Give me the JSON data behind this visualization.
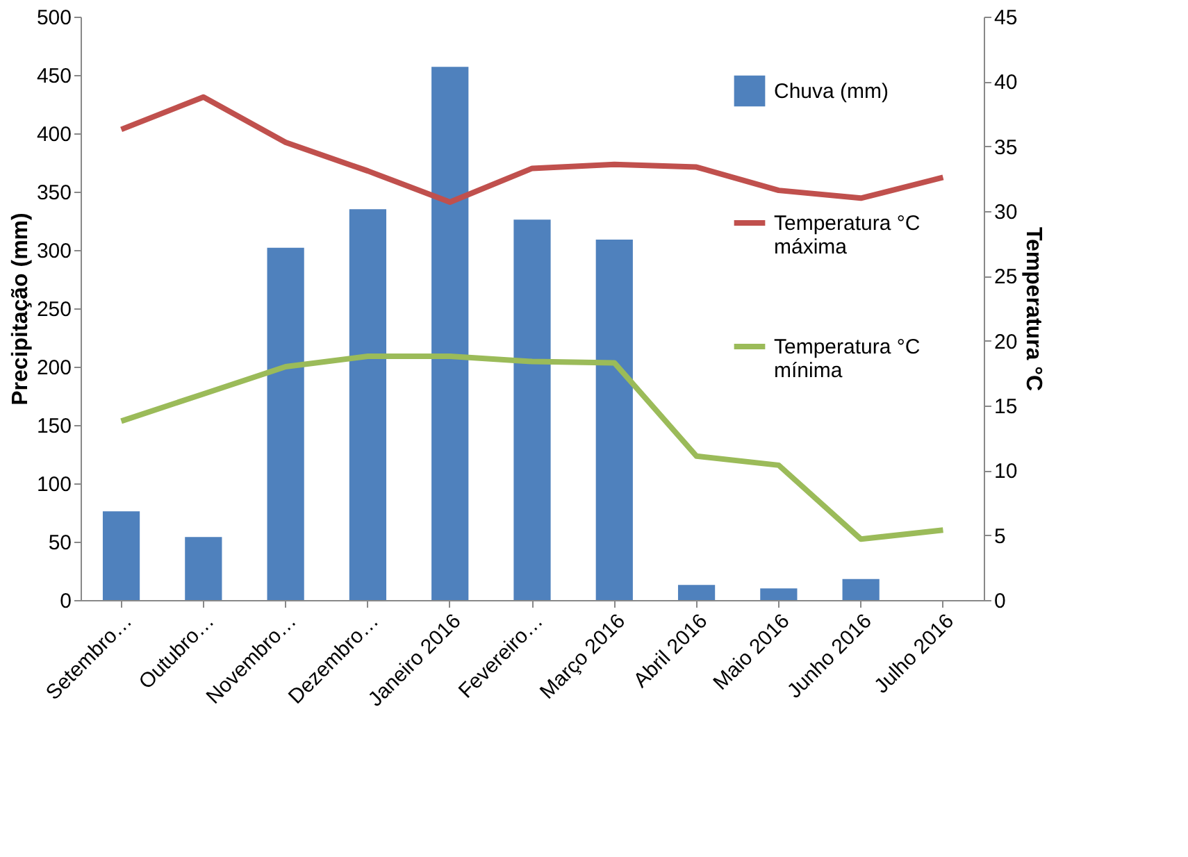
{
  "chart_data": {
    "type": "bar",
    "categories": [
      "Setembro…",
      "Outubro…",
      "Novembro…",
      "Dezembro…",
      "Janeiro 2016",
      "Fevereiro…",
      "Março 2016",
      "Abril 2016",
      "Maio 2016",
      "Junho 2016",
      "Julho 2016"
    ],
    "series": [
      {
        "name": "Chuva (mm)",
        "color": "#4f81bd",
        "values": [
          76,
          54,
          302,
          335,
          457,
          326,
          309,
          13,
          10,
          18,
          null
        ]
      },
      {
        "name": "Temperatura °C máxima",
        "type": "line",
        "axis": "y2",
        "color": "#c0504d",
        "values": [
          36.3,
          38.8,
          35.3,
          33.1,
          30.7,
          33.3,
          33.6,
          33.4,
          31.6,
          31.0,
          32.6
        ]
      },
      {
        "name": "Temperatura °C mínima",
        "type": "line",
        "axis": "y2",
        "color": "#9bbb59",
        "values": [
          13.8,
          15.9,
          18.0,
          18.8,
          18.8,
          18.4,
          18.3,
          11.1,
          10.4,
          4.7,
          5.4
        ]
      }
    ],
    "ylabel": "Precipitação (mm)",
    "y2label": "Temperatura °C",
    "ylim": [
      0,
      500
    ],
    "yticks": [
      0,
      50,
      100,
      150,
      200,
      250,
      300,
      350,
      400,
      450,
      500
    ],
    "y2lim": [
      0,
      45
    ],
    "y2ticks": [
      0,
      5,
      10,
      15,
      20,
      25,
      30,
      35,
      40,
      45
    ],
    "grid": false,
    "legend": "right"
  }
}
